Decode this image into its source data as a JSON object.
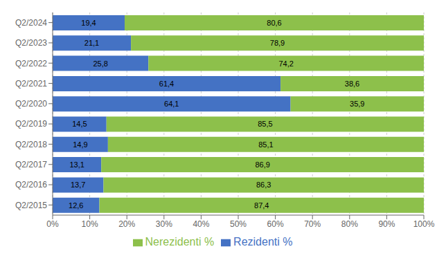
{
  "chart_data": {
    "type": "bar",
    "orientation": "horizontal",
    "stacked": true,
    "data_labels": true,
    "grid": true,
    "legend": "bottom",
    "categories": [
      "Q2/2024",
      "Q2/2023",
      "Q2/2022",
      "Q2/2021",
      "Q2/2020",
      "Q2/2019",
      "Q2/2018",
      "Q2/2017",
      "Q2/2016",
      "Q2/2015"
    ],
    "series": [
      {
        "name": "Rezidenti %",
        "color": "#4472C4",
        "values": [
          19.4,
          21.1,
          25.8,
          61.4,
          64.1,
          14.5,
          14.9,
          13.1,
          13.7,
          12.6
        ],
        "value_labels": [
          "19,4",
          "21,1",
          "25,8",
          "61,4",
          "64,1",
          "14,5",
          "14,9",
          "13,1",
          "13,7",
          "12,6"
        ]
      },
      {
        "name": "Nerezidenti %",
        "color": "#8DC04B",
        "values": [
          80.6,
          78.9,
          74.2,
          38.6,
          35.9,
          85.5,
          85.1,
          86.9,
          86.3,
          87.4
        ],
        "value_labels": [
          "80,6",
          "78,9",
          "74,2",
          "38,6",
          "35,9",
          "85,5",
          "85,1",
          "86,9",
          "86,3",
          "87,4"
        ]
      }
    ],
    "xlim": [
      0,
      100
    ],
    "xticks": [
      {
        "value": 0,
        "label": "0%"
      },
      {
        "value": 10,
        "label": "10%"
      },
      {
        "value": 20,
        "label": "20%"
      },
      {
        "value": 30,
        "label": "30%"
      },
      {
        "value": 40,
        "label": "40%"
      },
      {
        "value": 50,
        "label": "50%"
      },
      {
        "value": 60,
        "label": "60%"
      },
      {
        "value": 70,
        "label": "70%"
      },
      {
        "value": 80,
        "label": "80%"
      },
      {
        "value": 90,
        "label": "90%"
      },
      {
        "value": 100,
        "label": "100%"
      }
    ]
  }
}
